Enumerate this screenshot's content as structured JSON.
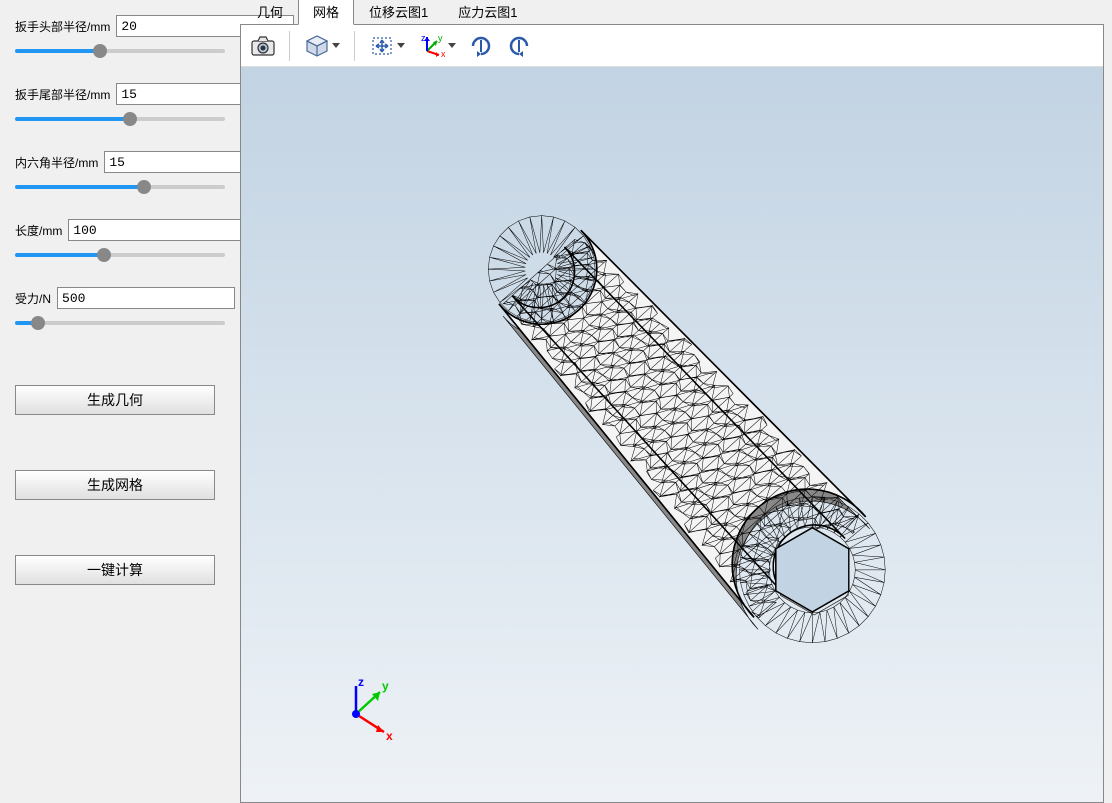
{
  "sidebar": {
    "params": [
      {
        "label": "扳手头部半径/mm",
        "value": "20",
        "slider_pct": 40
      },
      {
        "label": "扳手尾部半径/mm",
        "value": "15",
        "slider_pct": 55
      },
      {
        "label": "内六角半径/mm",
        "value": "15",
        "slider_pct": 62
      },
      {
        "label": "长度/mm",
        "value": "100",
        "slider_pct": 42
      },
      {
        "label": "受力/N",
        "value": "500",
        "slider_pct": 8
      }
    ],
    "buttons": {
      "generate_geometry": "生成几何",
      "generate_mesh": "生成网格",
      "one_click_compute": "一键计算"
    }
  },
  "tabs": {
    "items": [
      "几何",
      "网格",
      "位移云图1",
      "应力云图1"
    ],
    "active_index": 1
  },
  "toolbar": {
    "icons": {
      "camera": "camera-icon",
      "view_cube": "view-cube-icon",
      "fit_view": "fit-view-icon",
      "axes": "axes-icon",
      "rotate_cw": "rotate-cw-icon",
      "rotate_ccw": "rotate-ccw-icon"
    }
  },
  "viewport": {
    "bg_top": "#c2d3e3",
    "bg_bottom": "#eef2f6",
    "mesh_stroke": "#000000",
    "mesh_fill": "#f4f4f4",
    "axis": {
      "x_label": "x",
      "y_label": "y",
      "z_label": "z",
      "x_color": "#ff0000",
      "y_color": "#00cc00",
      "z_color": "#0000ff"
    }
  }
}
